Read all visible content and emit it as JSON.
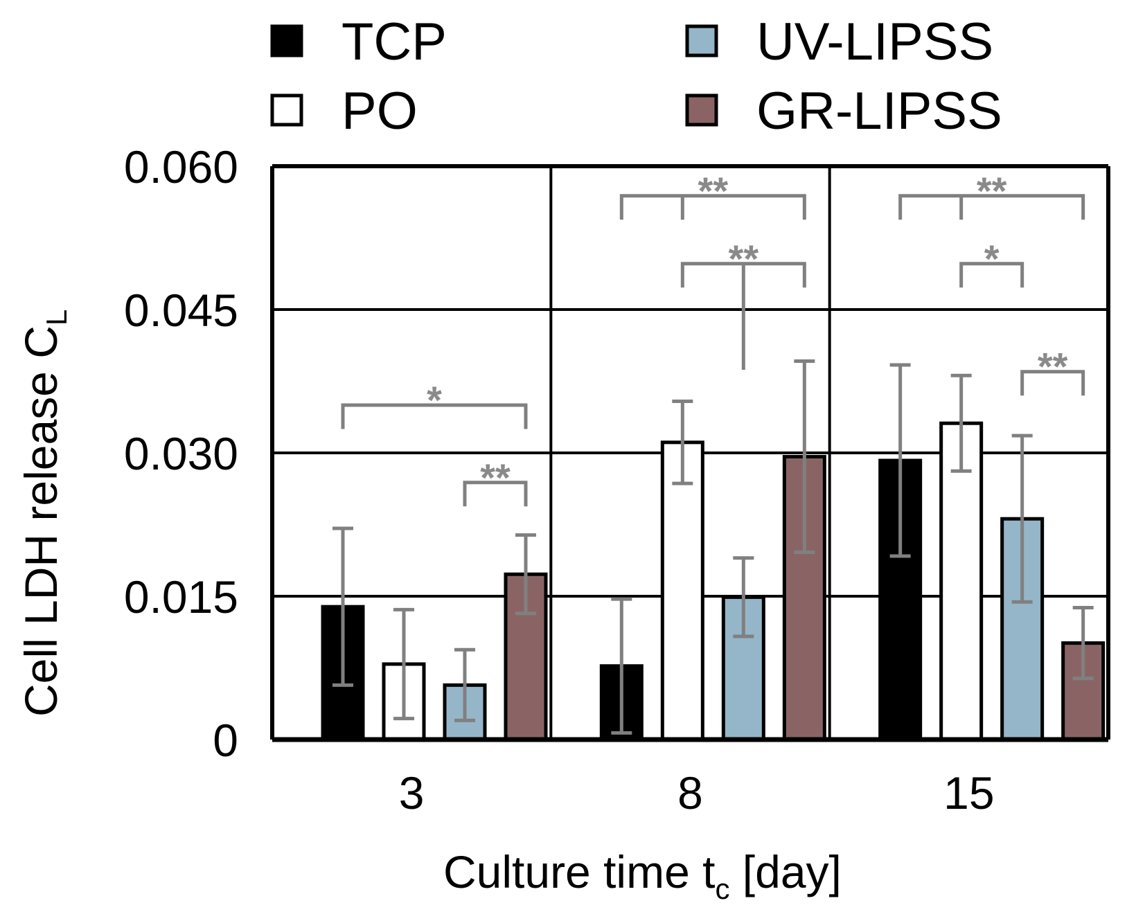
{
  "chart_data": {
    "type": "bar",
    "categories": [
      "3",
      "8",
      "15"
    ],
    "series": [
      {
        "name": "TCP",
        "color": "#000000",
        "values": [
          0.0139,
          0.0077,
          0.0292
        ],
        "errors": [
          0.0082,
          0.007,
          0.01
        ]
      },
      {
        "name": "PO",
        "color": "#ffffff",
        "values": [
          0.0079,
          0.0311,
          0.0331
        ],
        "errors": [
          0.0057,
          0.0043,
          0.005
        ]
      },
      {
        "name": "UV-LIPSS",
        "color": "#94b6c8",
        "values": [
          0.0057,
          0.0149,
          0.0231
        ],
        "errors": [
          0.0037,
          0.0041,
          0.0087
        ]
      },
      {
        "name": "GR-LIPSS",
        "color": "#8a6464",
        "values": [
          0.0173,
          0.0296,
          0.0101
        ],
        "errors": [
          0.0041,
          0.01,
          0.0037
        ]
      }
    ],
    "ylabel_main": "Cell LDH release C",
    "ylabel_sub": "L",
    "xlabel_main": "Culture time t",
    "xlabel_sub": "c",
    "xlabel_unit": " [day]",
    "ylim": [
      0,
      0.06
    ],
    "yticks": [
      0,
      0.015,
      0.03,
      0.045,
      0.06
    ],
    "ytick_labels": [
      "0",
      "0.015",
      "0.030",
      "0.045",
      "0.060"
    ],
    "grid": true,
    "legend_position": "top",
    "significance": [
      {
        "group": 0,
        "from": 0,
        "to": 3,
        "label": "*",
        "level": 0.035,
        "drop": 0.0025
      },
      {
        "group": 0,
        "from": 2,
        "to": 3,
        "label": "**",
        "level": 0.0269,
        "drop": 0.0025
      },
      {
        "group": 1,
        "from": 0,
        "to": 3,
        "label": "**",
        "level": 0.0569,
        "drop": 0.0025,
        "mid_tick": 1
      },
      {
        "group": 1,
        "from": 1,
        "to": 3,
        "label": "**",
        "level": 0.0498,
        "drop": 0.0025,
        "branch_to": 0.0387
      },
      {
        "group": 2,
        "from": 0,
        "to": 3,
        "label": "**",
        "level": 0.0569,
        "drop": 0.0025,
        "mid_tick": 1
      },
      {
        "group": 2,
        "from": 1,
        "to": 2,
        "label": "*",
        "level": 0.0498,
        "drop": 0.0025
      },
      {
        "group": 2,
        "from": 2,
        "to": 3,
        "label": "**",
        "level": 0.0385,
        "drop": 0.0025
      }
    ]
  }
}
